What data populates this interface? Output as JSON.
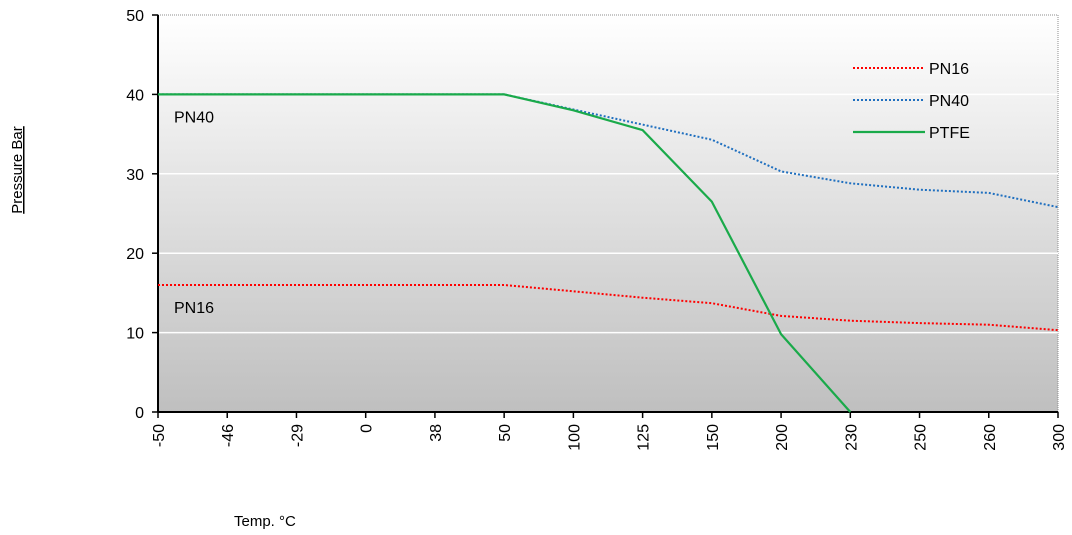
{
  "chart_data": {
    "type": "line",
    "title": "",
    "xlabel": "Temp. °C",
    "ylabel": "Pressure Bar",
    "categories": [
      "-50",
      "-46",
      "-29",
      "0",
      "38",
      "50",
      "100",
      "125",
      "150",
      "200",
      "230",
      "250",
      "260",
      "300"
    ],
    "ylim": [
      0,
      50
    ],
    "yticks": [
      0,
      10,
      20,
      30,
      40,
      50
    ],
    "grid": true,
    "legend_position": "top-right",
    "series": [
      {
        "name": "PN16",
        "color": "#ff0000",
        "style": "dotted",
        "values": [
          16,
          16,
          16,
          16,
          16,
          16,
          15.2,
          14.4,
          13.7,
          12.1,
          11.5,
          11.2,
          11.0,
          10.3
        ]
      },
      {
        "name": "PN40",
        "color": "#1f6fbf",
        "style": "dotted",
        "values": [
          40,
          40,
          40,
          40,
          40,
          40,
          38.1,
          36.2,
          34.3,
          30.3,
          28.8,
          28.0,
          27.6,
          25.8
        ]
      },
      {
        "name": "PTFE",
        "color": "#1aaa4a",
        "style": "solid",
        "values": [
          40,
          40,
          40,
          40,
          40,
          40,
          38,
          35.5,
          26.5,
          9.8,
          0,
          null,
          null,
          null
        ]
      }
    ],
    "annotations": [
      {
        "text": "PN40",
        "x": "-50",
        "y": 40
      },
      {
        "text": "PN16",
        "x": "-50",
        "y": 16
      }
    ]
  }
}
